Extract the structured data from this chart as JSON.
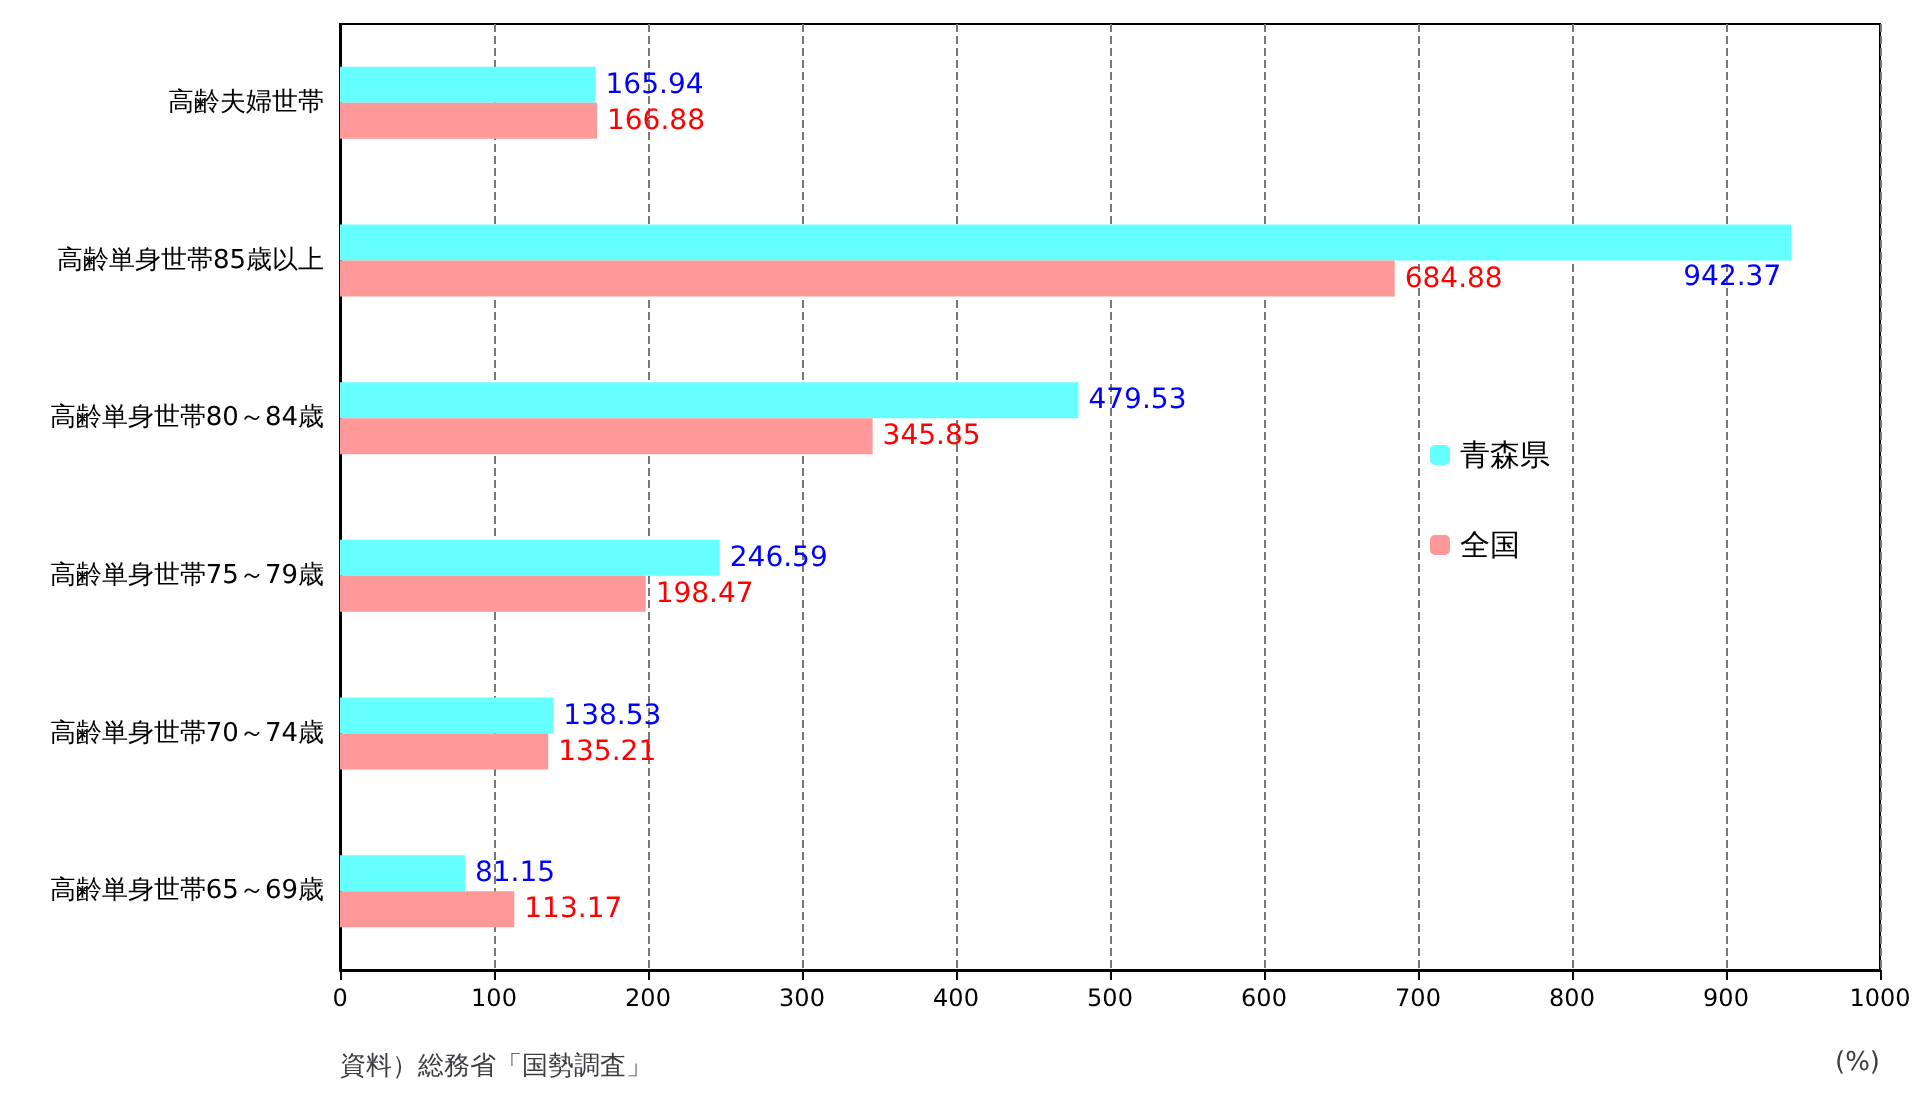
{
  "chart_data": {
    "type": "bar",
    "orientation": "horizontal",
    "categories": [
      "高齢夫婦世帯",
      "高齢単身世帯85歳以上",
      "高齢単身世帯80～84歳",
      "高齢単身世帯75～79歳",
      "高齢単身世帯70～74歳",
      "高齢単身世帯65～69歳"
    ],
    "series": [
      {
        "name": "青森県",
        "color": "#66ffff",
        "values": [
          165.94,
          942.37,
          479.53,
          246.59,
          138.53,
          81.15
        ]
      },
      {
        "name": "全国",
        "color": "#ff9999",
        "values": [
          166.88,
          684.88,
          345.85,
          198.47,
          135.21,
          113.17
        ]
      }
    ],
    "xlim": [
      0,
      1000
    ],
    "xticks": [
      0,
      100,
      200,
      300,
      400,
      500,
      600,
      700,
      800,
      900,
      1000
    ],
    "xlabel": "(%)",
    "annotations": [
      "資料）総務省「国勢調査」"
    ],
    "grid": "x",
    "legend": "right",
    "data_labels": true
  }
}
